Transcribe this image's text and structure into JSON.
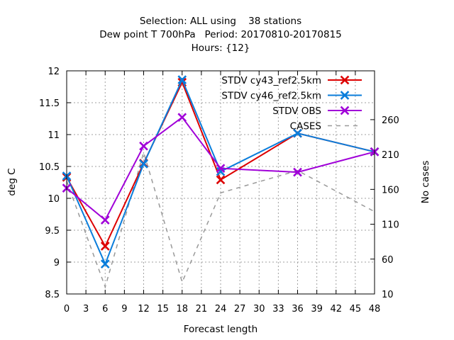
{
  "chart_data": {
    "type": "line",
    "title_lines": [
      "Selection: ALL using    38 stations",
      "Dew point T 700hPa   Period: 20170810-20170815",
      "Hours: {12}"
    ],
    "xlabel": "Forecast length",
    "ylabel": "deg C",
    "y2label": "No cases",
    "xlim": [
      0,
      48
    ],
    "ylim": [
      8.5,
      12
    ],
    "y2lim": [
      10,
      330
    ],
    "xticks": [
      0,
      3,
      6,
      9,
      12,
      15,
      18,
      21,
      24,
      27,
      30,
      33,
      36,
      39,
      42,
      45,
      48
    ],
    "yticks": [
      "8.5",
      "9",
      "9.5",
      "10",
      "10.5",
      "11",
      "11.5",
      "12"
    ],
    "y2ticks": [
      10,
      60,
      110,
      160,
      210,
      260
    ],
    "grid": true,
    "legend_position": "top-right",
    "x": [
      0,
      6,
      12,
      18,
      24,
      36,
      48
    ],
    "series": [
      {
        "name": "STDV cy43_ref2.5km",
        "axis": "left",
        "style": "solid",
        "marker": "x",
        "color": "#dd0000",
        "values": [
          10.33,
          9.25,
          10.55,
          11.82,
          10.29,
          11.02,
          10.73
        ]
      },
      {
        "name": "STDV cy46_ref2.5km",
        "axis": "left",
        "style": "solid",
        "marker": "x",
        "color": "#0a7ddb",
        "values": [
          10.35,
          8.97,
          10.54,
          11.86,
          10.42,
          11.02,
          10.73
        ]
      },
      {
        "name": "STDV OBS",
        "axis": "left",
        "style": "solid",
        "marker": "x",
        "color": "#a000d8",
        "values": [
          10.16,
          9.66,
          10.82,
          11.27,
          10.47,
          10.41,
          10.73
        ]
      },
      {
        "name": "CASES",
        "axis": "right",
        "style": "dashed",
        "marker": "none",
        "color": "#999999",
        "values": [
          172,
          20,
          213,
          27,
          155,
          187,
          128
        ]
      }
    ]
  }
}
